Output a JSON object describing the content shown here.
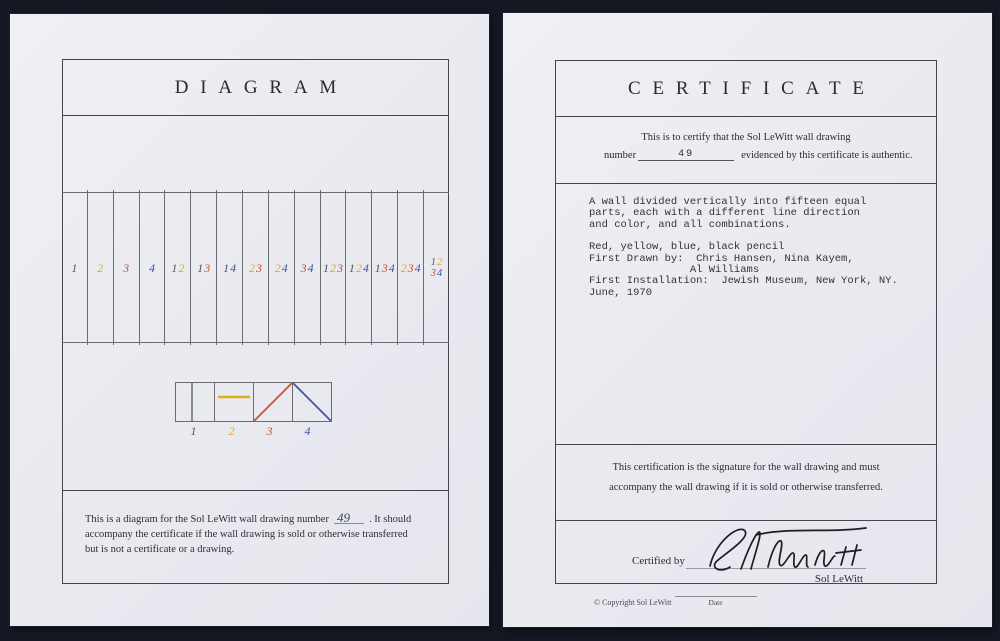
{
  "colors": {
    "pencil": "#55575f",
    "yellow": "#e2ab1c",
    "red": "#d04c37",
    "blue": "#3d55a4",
    "frame_line": "#45454b",
    "strip_line": "#6c6d74",
    "page": "#ebecf1",
    "backdrop": "#141822",
    "ink": "#2c2c31"
  },
  "digit_colors": {
    "1": "pencil",
    "2": "yellow",
    "3": "red",
    "4": "blue"
  },
  "diagram_page": {
    "title": "DIAGRAM",
    "strip": {
      "columns": [
        [
          "1"
        ],
        [
          "2"
        ],
        [
          "3"
        ],
        [
          "4"
        ],
        [
          "1",
          "2"
        ],
        [
          "1",
          "3"
        ],
        [
          "1",
          "4"
        ],
        [
          "2",
          "3"
        ],
        [
          "2",
          "4"
        ],
        [
          "3",
          "4"
        ],
        [
          "1",
          "2",
          "3"
        ],
        [
          "1",
          "2",
          "4"
        ],
        [
          "1",
          "3",
          "4"
        ],
        [
          "2",
          "3",
          "4"
        ],
        {
          "rows": [
            [
              "1",
              "2"
            ],
            [
              "3",
              "4"
            ]
          ]
        }
      ]
    },
    "legend": [
      {
        "label": "1",
        "line": "vertical"
      },
      {
        "label": "2",
        "line": "horizontal"
      },
      {
        "label": "3",
        "line": "diag-up"
      },
      {
        "label": "4",
        "line": "diag-down"
      }
    ],
    "footer": {
      "line1_pre": "This is a diagram for the Sol LeWitt wall drawing number",
      "number": "49",
      "line1_post": ". It should",
      "line2": "accompany the certificate if the wall drawing is sold or otherwise transferred",
      "line3": "but is not a certificate or a drawing."
    }
  },
  "certificate_page": {
    "title": "CERTIFICATE",
    "certify_line1": "This is to certify that the Sol LeWitt wall drawing",
    "number_label": "number",
    "number": "49",
    "certify_line2": "evidenced by this certificate is authentic.",
    "description": "A wall divided vertically into fifteen equal\nparts, each with a different line direction\nand color, and all combinations.",
    "details": "Red, yellow, blue, black pencil\nFirst Drawn by:  Chris Hansen, Nina Kayem,\n                Al Williams\nFirst Installation:  Jewish Museum, New York, NY.\nJune, 1970",
    "statement_line1": "This certification is the signature for the wall drawing and must",
    "statement_line2": "accompany the wall drawing if it is sold or otherwise transferred.",
    "certified_by_label": "Certified by",
    "signer_name": "Sol LeWitt",
    "copyright": "© Copyright Sol LeWitt",
    "date_label": "Date"
  }
}
